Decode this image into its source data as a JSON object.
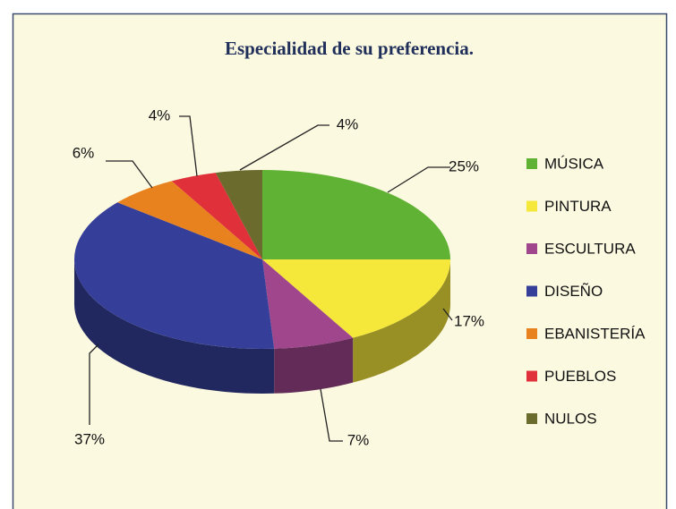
{
  "chart_data": {
    "type": "pie",
    "title": "Especialidad de su preferencia.",
    "categories": [
      "MÚSICA",
      "PINTURA",
      "ESCULTURA",
      "DISEÑO",
      "EBANISTERÍA",
      "PUEBLOS",
      "NULOS"
    ],
    "values": [
      25,
      17,
      7,
      37,
      6,
      4,
      4
    ],
    "value_labels": [
      "25%",
      "17%",
      "7%",
      "37%",
      "6%",
      "4%",
      "4%"
    ],
    "colors": [
      "#5fb233",
      "#f5e83a",
      "#a0468c",
      "#353f9a",
      "#e8821e",
      "#e0303a",
      "#6b6b2e"
    ],
    "legend": "right"
  }
}
